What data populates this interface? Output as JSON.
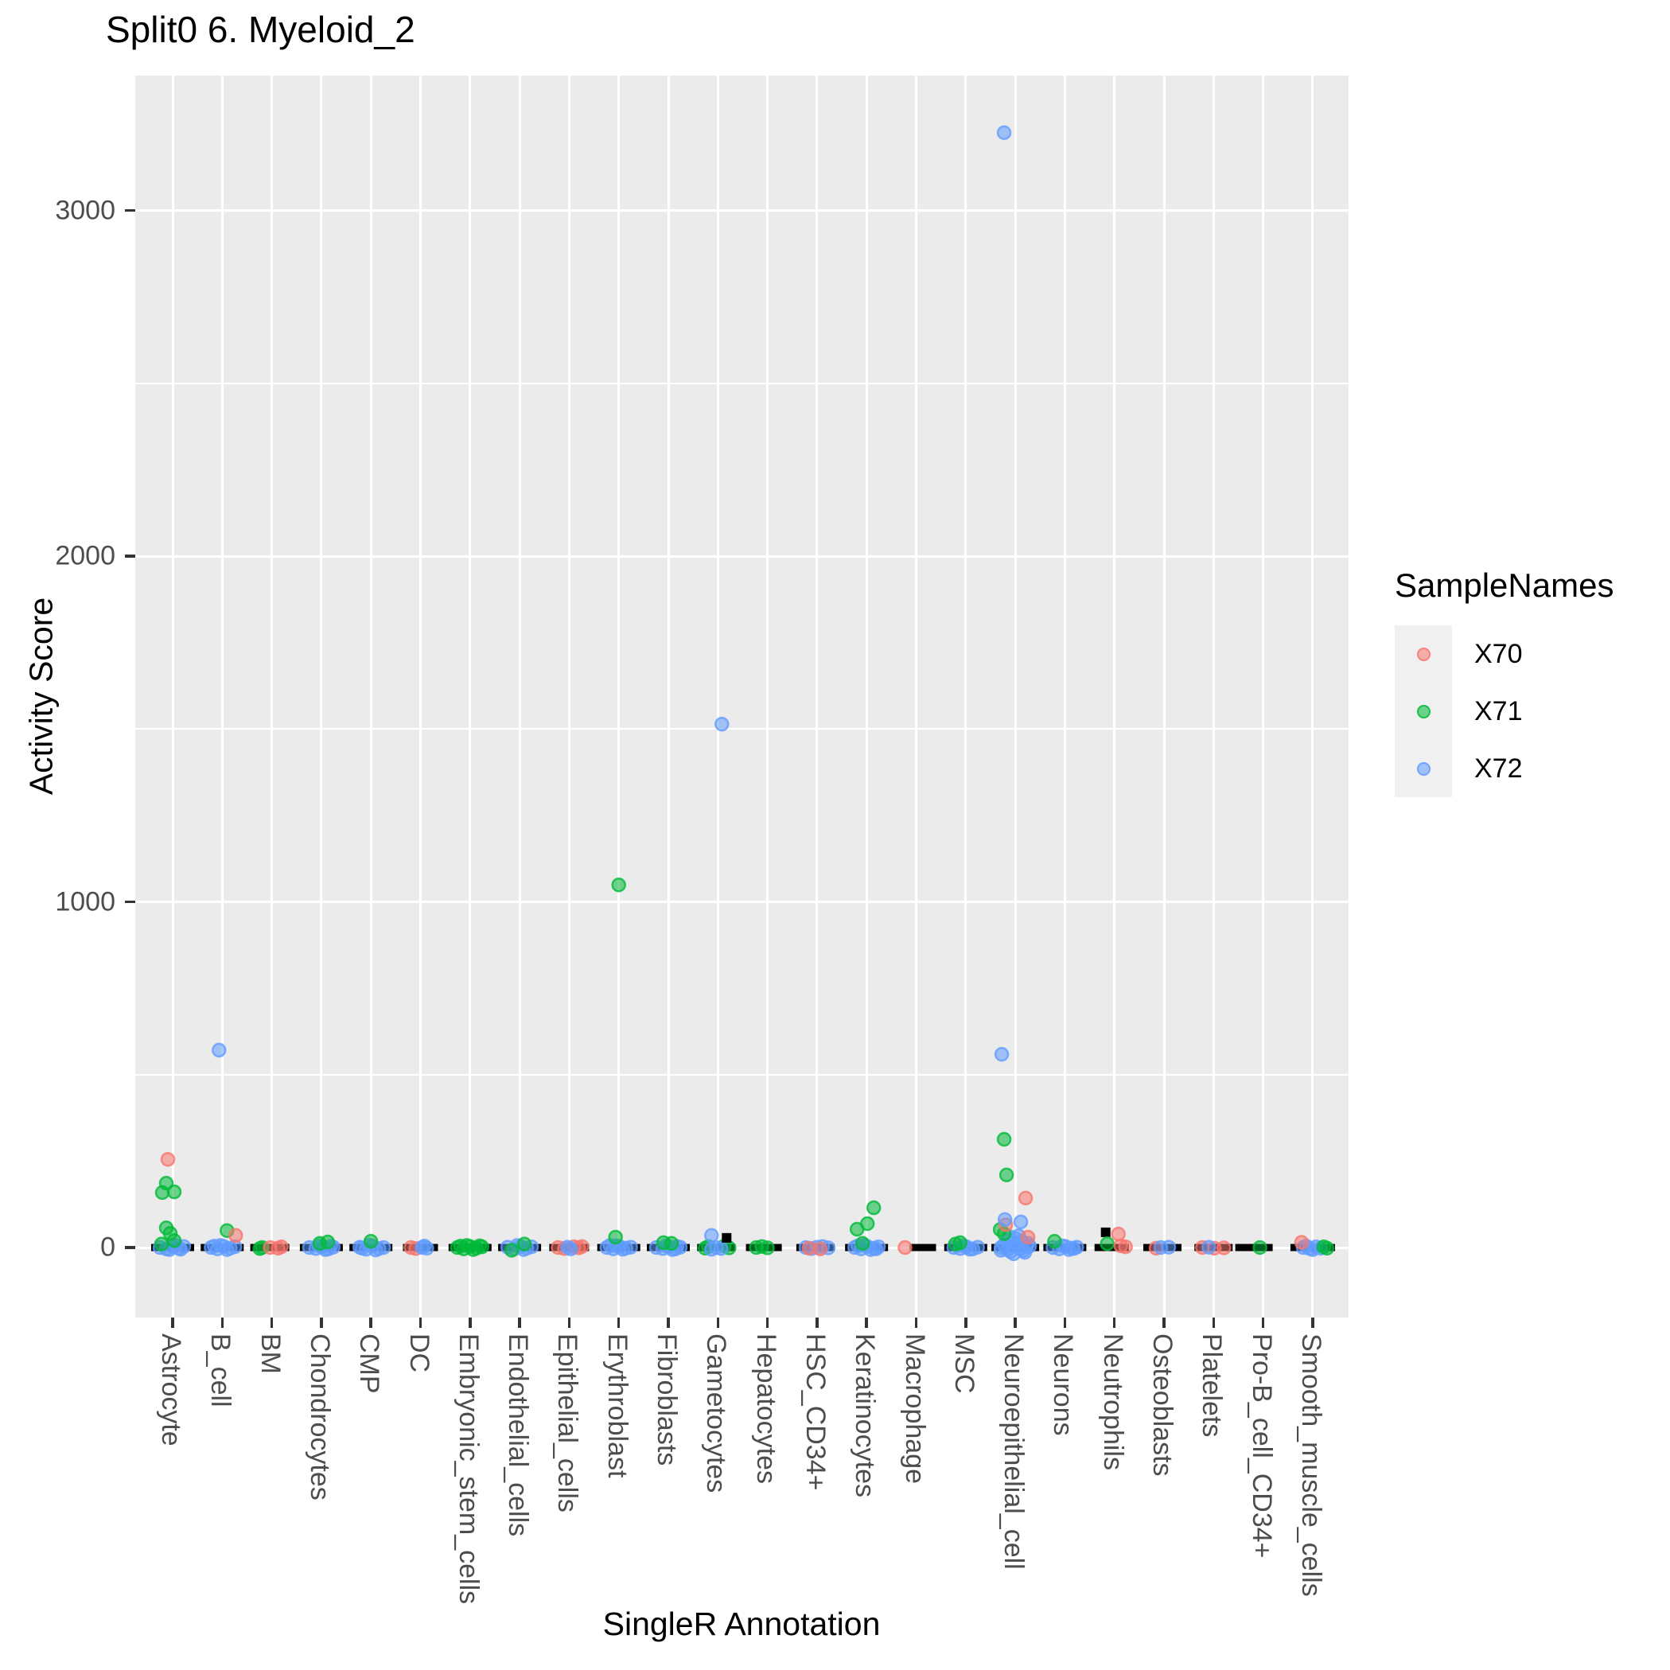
{
  "chart_data": {
    "type": "scatter",
    "title": "Split0 6. Myeloid_2",
    "xlabel": "SingleR Annotation",
    "ylabel": "Activity Score",
    "y_tick_labels": [
      "0",
      "1000",
      "2000",
      "3000"
    ],
    "y_major_ticks": [
      0,
      1000,
      2000,
      3000
    ],
    "y_minor_gridlines": [
      500,
      1500,
      2500
    ],
    "ylim": [
      -210,
      3390
    ],
    "grid": "on",
    "panel_background": "#EBEBEB",
    "gridline_color": "#ffffff",
    "legend": {
      "title": "SampleNames",
      "position": "right",
      "entries": [
        {
          "label": "X70",
          "color": "#F8766D"
        },
        {
          "label": "X71",
          "color": "#00BA38"
        },
        {
          "label": "X72",
          "color": "#619CFF"
        }
      ]
    },
    "color_codes": {
      "r": "#F8766D",
      "g": "#00BA38",
      "b": "#619CFF",
      "k": "#000000"
    },
    "code_to_sample": {
      "r": "X70",
      "g": "X71",
      "b": "X72",
      "k": "boxplot-outlier"
    },
    "point_note": "points are [jitter_dx_px, activity_score_value, color_code]; bar is the flat black boxplot at score 0 given as [dx_left, dx_right]",
    "categories": [
      {
        "name": "Astrocyte",
        "bar": [
          -27,
          27
        ],
        "points": [
          [
            -16,
            0,
            "b"
          ],
          [
            -8,
            -4,
            "b"
          ],
          [
            0,
            2,
            "b"
          ],
          [
            8,
            -2,
            "b"
          ],
          [
            14,
            3,
            "b"
          ],
          [
            4,
            6,
            "b"
          ],
          [
            -4,
            -6,
            "b"
          ],
          [
            10,
            -5,
            "b"
          ],
          [
            -14,
            10,
            "g"
          ],
          [
            2,
            20,
            "g"
          ],
          [
            -3,
            41,
            "g"
          ],
          [
            -8,
            57,
            "g"
          ],
          [
            -13,
            159,
            "g"
          ],
          [
            2,
            161,
            "g"
          ],
          [
            -8,
            186,
            "g"
          ],
          [
            -6,
            255,
            "r"
          ]
        ]
      },
      {
        "name": "B_cell",
        "bar": [
          -27,
          27
        ],
        "points": [
          [
            -14,
            0,
            "b"
          ],
          [
            -6,
            -4,
            "b"
          ],
          [
            2,
            3,
            "b"
          ],
          [
            10,
            -2,
            "b"
          ],
          [
            16,
            2,
            "b"
          ],
          [
            -2,
            6,
            "b"
          ],
          [
            6,
            -6,
            "b"
          ],
          [
            -10,
            4,
            "b"
          ],
          [
            6,
            49,
            "g"
          ],
          [
            17,
            35,
            "r"
          ],
          [
            -4,
            571,
            "b"
          ]
        ]
      },
      {
        "name": "BM",
        "bar": [
          -27,
          22
        ],
        "points": [
          [
            -12,
            0,
            "g"
          ],
          [
            -15,
            -3,
            "g"
          ],
          [
            -2,
            0,
            "r"
          ],
          [
            8,
            -2,
            "r"
          ],
          [
            12,
            2,
            "r"
          ]
        ]
      },
      {
        "name": "Chondrocytes",
        "bar": [
          -27,
          27
        ],
        "points": [
          [
            -15,
            0,
            "b"
          ],
          [
            -7,
            -3,
            "b"
          ],
          [
            1,
            2,
            "b"
          ],
          [
            9,
            -4,
            "b"
          ],
          [
            15,
            1,
            "b"
          ],
          [
            -3,
            5,
            "b"
          ],
          [
            5,
            -6,
            "b"
          ],
          [
            12,
            4,
            "b"
          ],
          [
            8,
            16,
            "g"
          ],
          [
            -2,
            12,
            "g"
          ]
        ]
      },
      {
        "name": "CMP",
        "bar": [
          -27,
          27
        ],
        "points": [
          [
            -14,
            1,
            "b"
          ],
          [
            -6,
            -5,
            "b"
          ],
          [
            2,
            4,
            "b"
          ],
          [
            10,
            -3,
            "b"
          ],
          [
            16,
            0,
            "b"
          ],
          [
            -2,
            7,
            "b"
          ],
          [
            6,
            -7,
            "b"
          ],
          [
            -11,
            -2,
            "b"
          ],
          [
            0,
            18,
            "g"
          ]
        ]
      },
      {
        "name": "DC",
        "bar": [
          -22,
          22
        ],
        "points": [
          [
            -12,
            0,
            "r"
          ],
          [
            -6,
            -3,
            "r"
          ],
          [
            2,
            0,
            "b"
          ],
          [
            8,
            -2,
            "b"
          ],
          [
            5,
            4,
            "b"
          ]
        ]
      },
      {
        "name": "Embryonic_stem_cells",
        "bar": [
          -27,
          27
        ],
        "points": [
          [
            -16,
            0,
            "g"
          ],
          [
            -8,
            -4,
            "g"
          ],
          [
            0,
            3,
            "g"
          ],
          [
            8,
            -2,
            "g"
          ],
          [
            15,
            2,
            "g"
          ],
          [
            -4,
            6,
            "g"
          ],
          [
            4,
            -6,
            "g"
          ],
          [
            12,
            5,
            "g"
          ],
          [
            -12,
            4,
            "g"
          ]
        ]
      },
      {
        "name": "Endothelial_cells",
        "bar": [
          -27,
          27
        ],
        "points": [
          [
            -15,
            1,
            "b"
          ],
          [
            -7,
            -4,
            "b"
          ],
          [
            1,
            3,
            "b"
          ],
          [
            9,
            -2,
            "b"
          ],
          [
            15,
            2,
            "b"
          ],
          [
            -3,
            6,
            "b"
          ],
          [
            5,
            -6,
            "b"
          ],
          [
            -10,
            -8,
            "g"
          ],
          [
            6,
            10,
            "g"
          ]
        ]
      },
      {
        "name": "Epithelial_cells",
        "bar": [
          -25,
          25
        ],
        "points": [
          [
            -14,
            0,
            "r"
          ],
          [
            -6,
            -3,
            "r"
          ],
          [
            6,
            2,
            "r"
          ],
          [
            12,
            -1,
            "r"
          ],
          [
            16,
            3,
            "r"
          ],
          [
            -2,
            1,
            "b"
          ],
          [
            2,
            -4,
            "b"
          ]
        ]
      },
      {
        "name": "Erythroblast",
        "bar": [
          -27,
          27
        ],
        "points": [
          [
            -15,
            0,
            "b"
          ],
          [
            -7,
            -4,
            "b"
          ],
          [
            1,
            3,
            "b"
          ],
          [
            9,
            -2,
            "b"
          ],
          [
            15,
            1,
            "b"
          ],
          [
            -3,
            5,
            "b"
          ],
          [
            5,
            -5,
            "b"
          ],
          [
            -11,
            6,
            "b"
          ],
          [
            -4,
            30,
            "g"
          ],
          [
            0,
            1049,
            "g"
          ]
        ]
      },
      {
        "name": "Fibroblasts",
        "bar": [
          -27,
          27
        ],
        "points": [
          [
            -15,
            0,
            "b"
          ],
          [
            -7,
            -3,
            "b"
          ],
          [
            1,
            2,
            "b"
          ],
          [
            9,
            -4,
            "b"
          ],
          [
            15,
            1,
            "b"
          ],
          [
            -3,
            5,
            "b"
          ],
          [
            5,
            -6,
            "b"
          ],
          [
            11,
            3,
            "b"
          ],
          [
            -6,
            14,
            "g"
          ],
          [
            4,
            12,
            "g"
          ]
        ]
      },
      {
        "name": "Gametocytes",
        "bar": [
          -26,
          22
        ],
        "points": [
          [
            -16,
            -2,
            "g"
          ],
          [
            -12,
            3,
            "g"
          ],
          [
            14,
            -1,
            "g"
          ],
          [
            8,
            4,
            "g"
          ],
          [
            -2,
            0,
            "b"
          ],
          [
            4,
            -3,
            "b"
          ],
          [
            -8,
            -5,
            "b"
          ],
          [
            -8,
            35,
            "b"
          ],
          [
            11,
            28,
            "k"
          ],
          [
            5,
            1514,
            "b"
          ]
        ]
      },
      {
        "name": "Hepatocytes",
        "bar": [
          -27,
          18
        ],
        "points": [
          [
            -14,
            0,
            "g"
          ],
          [
            0,
            -1,
            "g"
          ],
          [
            -7,
            3,
            "g"
          ]
        ]
      },
      {
        "name": "HSC_CD34+",
        "bar": [
          -26,
          22
        ],
        "points": [
          [
            -14,
            0,
            "b"
          ],
          [
            0,
            1,
            "b"
          ],
          [
            14,
            -1,
            "b"
          ],
          [
            -7,
            -3,
            "b"
          ],
          [
            7,
            3,
            "b"
          ],
          [
            -10,
            -2,
            "r"
          ],
          [
            4,
            -4,
            "r"
          ]
        ]
      },
      {
        "name": "Keratinocytes",
        "bar": [
          -27,
          27
        ],
        "points": [
          [
            -15,
            0,
            "b"
          ],
          [
            -7,
            -4,
            "b"
          ],
          [
            1,
            3,
            "b"
          ],
          [
            9,
            -2,
            "b"
          ],
          [
            15,
            2,
            "b"
          ],
          [
            -3,
            6,
            "b"
          ],
          [
            5,
            -6,
            "b"
          ],
          [
            -11,
            5,
            "b"
          ],
          [
            12,
            -4,
            "b"
          ],
          [
            -5,
            12,
            "g"
          ],
          [
            -12,
            53,
            "g"
          ],
          [
            1,
            69,
            "g"
          ],
          [
            9,
            115,
            "g"
          ]
        ]
      },
      {
        "name": "Macrophage",
        "bar": [
          -8,
          25
        ],
        "points": [
          [
            -14,
            0,
            "r"
          ]
        ]
      },
      {
        "name": "MSC",
        "bar": [
          -27,
          27
        ],
        "points": [
          [
            -15,
            0,
            "b"
          ],
          [
            -7,
            -3,
            "b"
          ],
          [
            1,
            2,
            "b"
          ],
          [
            9,
            -4,
            "b"
          ],
          [
            15,
            1,
            "b"
          ],
          [
            -3,
            5,
            "b"
          ],
          [
            5,
            -5,
            "b"
          ],
          [
            -13,
            10,
            "g"
          ],
          [
            -7,
            14,
            "g"
          ]
        ]
      },
      {
        "name": "Neuroepithelial_cell",
        "bar": [
          -30,
          30
        ],
        "points": [
          [
            -18,
            0,
            "b"
          ],
          [
            -10,
            -6,
            "b"
          ],
          [
            -2,
            4,
            "b"
          ],
          [
            6,
            -3,
            "b"
          ],
          [
            14,
            2,
            "b"
          ],
          [
            -14,
            8,
            "b"
          ],
          [
            -6,
            -12,
            "b"
          ],
          [
            2,
            12,
            "b"
          ],
          [
            10,
            -9,
            "b"
          ],
          [
            18,
            4,
            "b"
          ],
          [
            -10,
            20,
            "b"
          ],
          [
            0,
            26,
            "b"
          ],
          [
            8,
            18,
            "b"
          ],
          [
            -2,
            -18,
            "b"
          ],
          [
            12,
            -14,
            "b"
          ],
          [
            -18,
            -8,
            "b"
          ],
          [
            16,
            12,
            "b"
          ],
          [
            4,
            34,
            "b"
          ],
          [
            -8,
            32,
            "b"
          ],
          [
            -19,
            52,
            "g"
          ],
          [
            -14,
            40,
            "g"
          ],
          [
            -12,
            66,
            "r"
          ],
          [
            16,
            30,
            "r"
          ],
          [
            -13,
            81,
            "b"
          ],
          [
            7,
            74,
            "b"
          ],
          [
            13,
            143,
            "r"
          ],
          [
            -11,
            210,
            "g"
          ],
          [
            -14,
            313,
            "g"
          ],
          [
            -17,
            559,
            "b"
          ],
          [
            -14,
            3225,
            "b"
          ]
        ]
      },
      {
        "name": "Neurons",
        "bar": [
          -27,
          27
        ],
        "points": [
          [
            -15,
            0,
            "b"
          ],
          [
            -7,
            -4,
            "b"
          ],
          [
            1,
            3,
            "b"
          ],
          [
            9,
            -2,
            "b"
          ],
          [
            15,
            1,
            "b"
          ],
          [
            -3,
            5,
            "b"
          ],
          [
            5,
            -6,
            "b"
          ],
          [
            11,
            -3,
            "b"
          ],
          [
            -13,
            18,
            "g"
          ]
        ]
      },
      {
        "name": "Neutrophils",
        "bar": [
          -25,
          18
        ],
        "points": [
          [
            -11,
            44,
            "k"
          ],
          [
            5,
            39,
            "r"
          ],
          [
            -9,
            11,
            "g"
          ],
          [
            8,
            5,
            "r"
          ],
          [
            14,
            2,
            "r"
          ]
        ]
      },
      {
        "name": "Osteoblasts",
        "bar": [
          -26,
          22
        ],
        "points": [
          [
            -10,
            -2,
            "r"
          ],
          [
            -4,
            0,
            "b"
          ],
          [
            6,
            1,
            "b"
          ]
        ]
      },
      {
        "name": "Platelets",
        "bar": [
          -24,
          24
        ],
        "points": [
          [
            -14,
            0,
            "r"
          ],
          [
            1,
            -2,
            "r"
          ],
          [
            13,
            -1,
            "r"
          ],
          [
            -6,
            1,
            "b"
          ]
        ]
      },
      {
        "name": "Pro-B_cell_CD34+",
        "bar": [
          -35,
          12
        ],
        "points": [
          [
            -4,
            0,
            "g"
          ]
        ]
      },
      {
        "name": "Smooth_muscle_cells",
        "bar": [
          -28,
          28
        ],
        "points": [
          [
            -12,
            0,
            "b"
          ],
          [
            -4,
            -3,
            "b"
          ],
          [
            4,
            2,
            "b"
          ],
          [
            10,
            -2,
            "b"
          ],
          [
            -8,
            4,
            "b"
          ],
          [
            0,
            -6,
            "b"
          ],
          [
            14,
            2,
            "g"
          ],
          [
            18,
            -2,
            "g"
          ],
          [
            -14,
            15,
            "r"
          ]
        ]
      }
    ]
  }
}
